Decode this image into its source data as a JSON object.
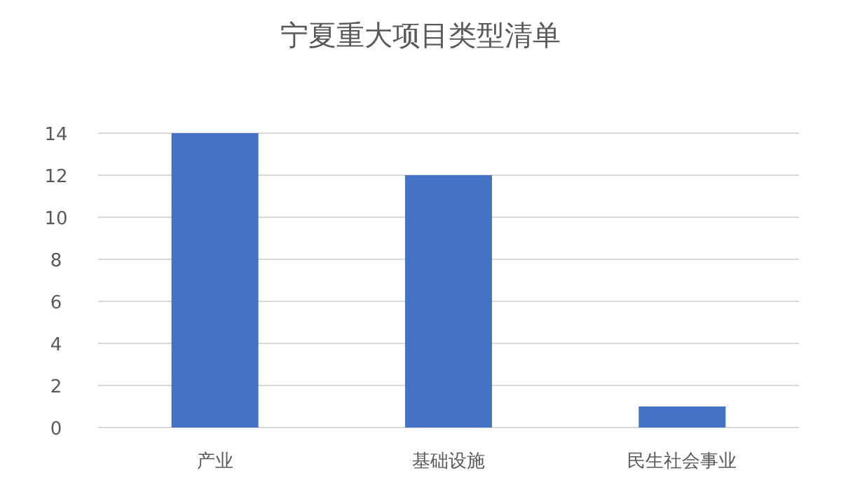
{
  "chart_data": {
    "type": "bar",
    "title": "宁夏重大项目类型清单",
    "categories": [
      "产业",
      "基础设施",
      "民生社会事业"
    ],
    "values": [
      14,
      12,
      1
    ],
    "color": "#4472c4",
    "ylim": [
      0,
      14
    ],
    "yticks": [
      0,
      2,
      4,
      6,
      8,
      10,
      12,
      14
    ],
    "grid": "y"
  }
}
